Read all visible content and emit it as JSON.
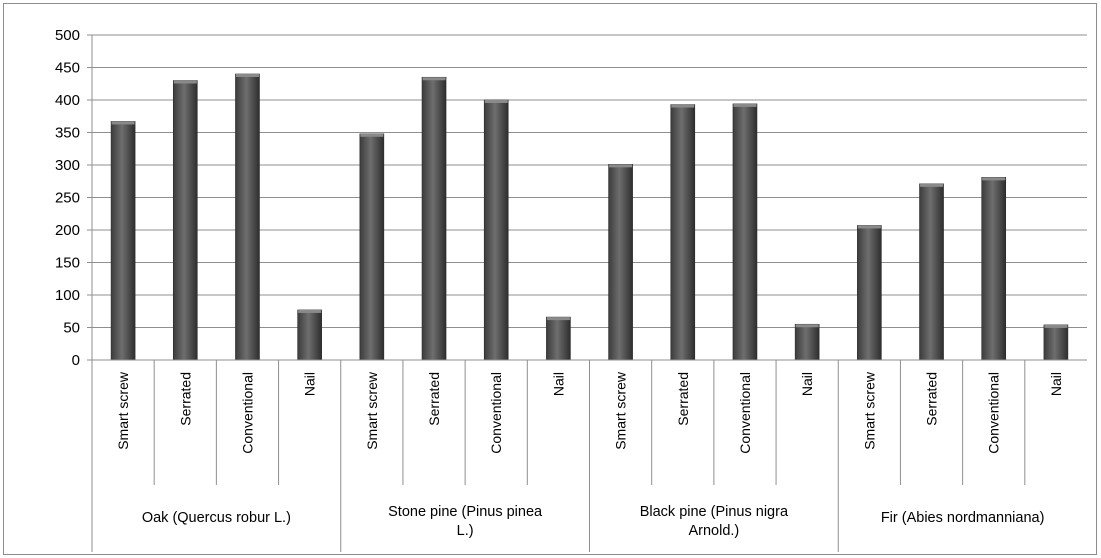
{
  "chart_data": {
    "type": "bar",
    "title": "",
    "xlabel": "",
    "ylabel": "",
    "ylim": [
      0,
      500
    ],
    "yticks": [
      0,
      50,
      100,
      150,
      200,
      250,
      300,
      350,
      400,
      450,
      500
    ],
    "grid": true,
    "legend": "none",
    "bar_color": "#5a5a5a",
    "groups": [
      {
        "label_lines": [
          "Oak (Quercus robur L.)"
        ],
        "categories": [
          "Smart screw",
          "Serrated",
          "Conventional",
          "Nail"
        ],
        "values": [
          367,
          430,
          440,
          77
        ]
      },
      {
        "label_lines": [
          "Stone pine (Pinus pinea",
          "L.)"
        ],
        "categories": [
          "Smart screw",
          "Serrated",
          "Conventional",
          "Nail"
        ],
        "values": [
          348,
          435,
          400,
          66
        ]
      },
      {
        "label_lines": [
          "Black pine (Pinus nigra",
          "Arnold.)"
        ],
        "categories": [
          "Smart screw",
          "Serrated",
          "Conventional",
          "Nail"
        ],
        "values": [
          301,
          393,
          394,
          55
        ]
      },
      {
        "label_lines": [
          "Fir (Abies  nordmanniana)"
        ],
        "categories": [
          "Smart screw",
          "Serrated",
          "Conventional",
          "Nail"
        ],
        "values": [
          207,
          271,
          281,
          54
        ]
      }
    ]
  }
}
